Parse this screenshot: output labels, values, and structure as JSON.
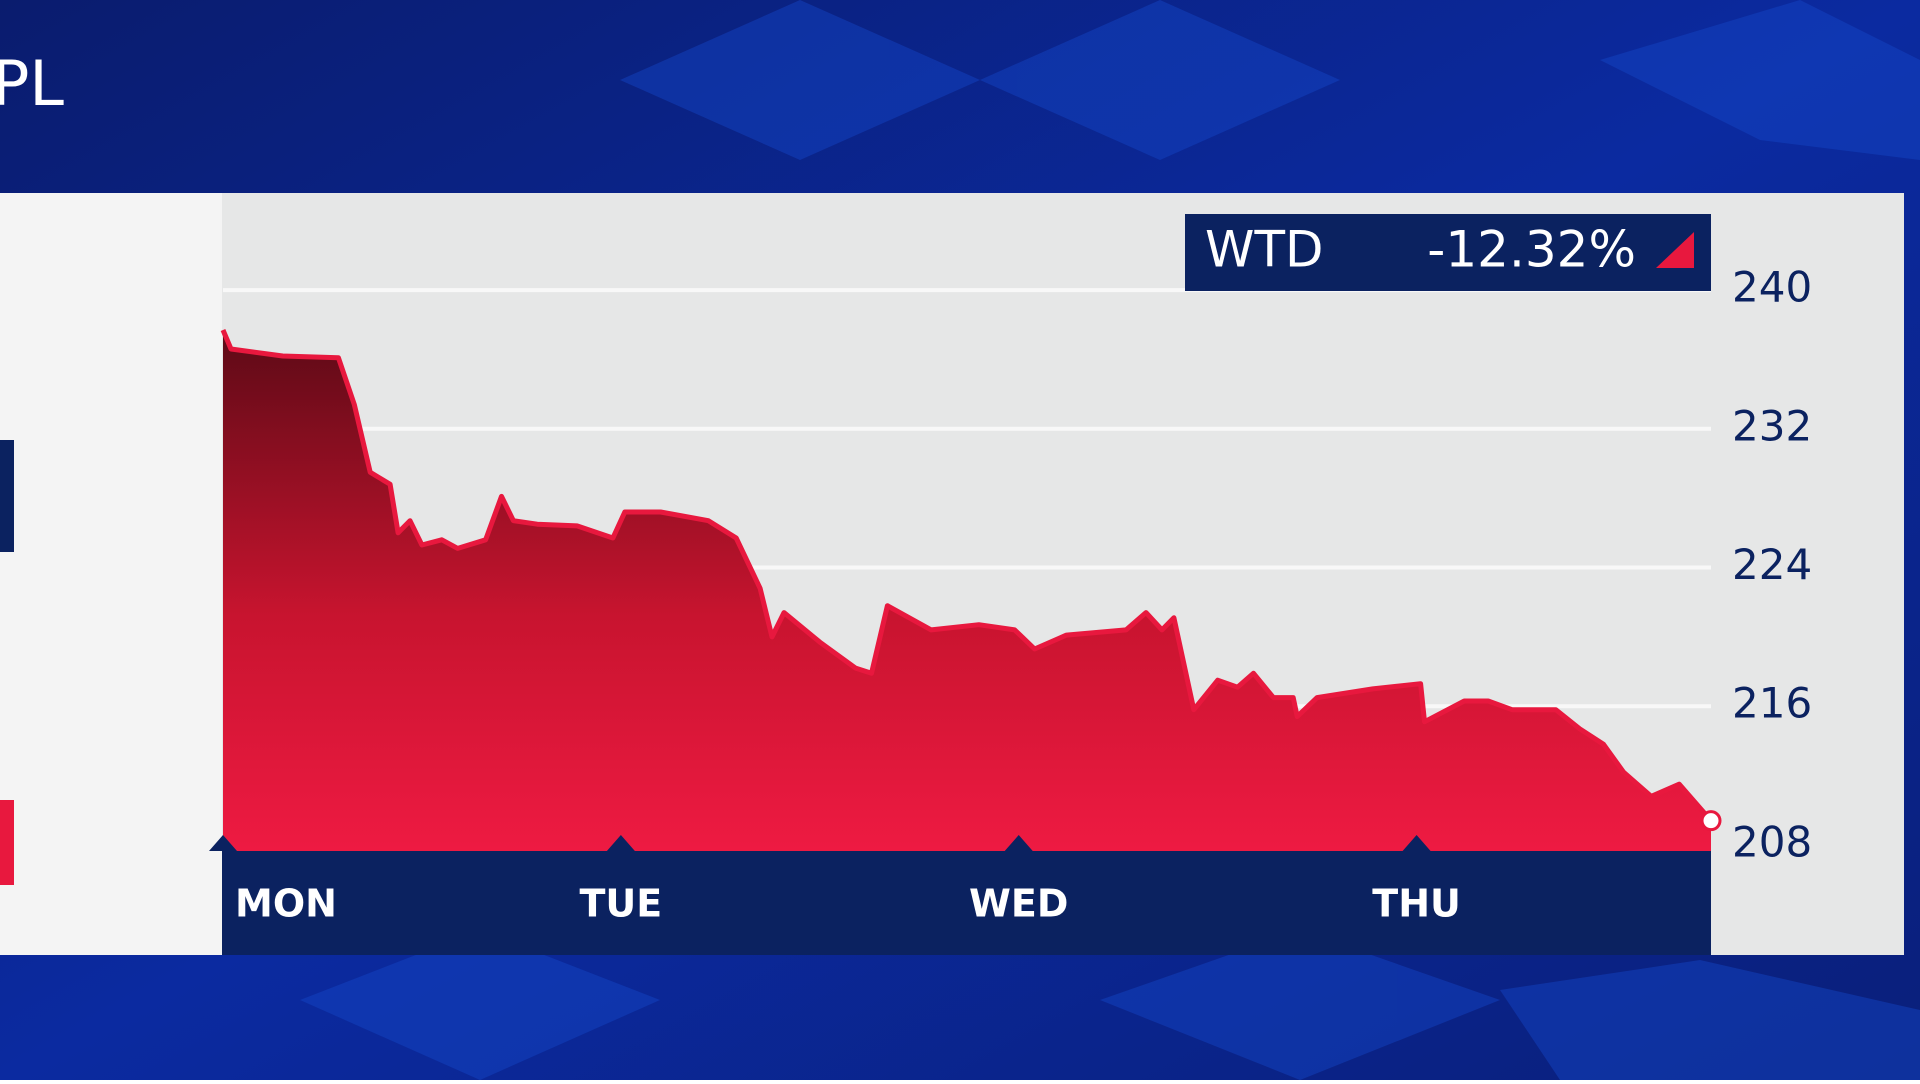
{
  "ticker": "PL",
  "chart_data": {
    "type": "area",
    "badge": {
      "label": "WTD",
      "change": "-12.32%"
    },
    "x": [
      0,
      0.02,
      0.15,
      0.29,
      0.33,
      0.37,
      0.42,
      0.44,
      0.47,
      0.5,
      0.55,
      0.59,
      0.66,
      0.7,
      0.73,
      0.79,
      0.89,
      0.98,
      1.01,
      1.1,
      1.22,
      1.29,
      1.35,
      1.38,
      1.41,
      1.5,
      1.59,
      1.63,
      1.67,
      1.78,
      1.9,
      1.99,
      2.04,
      2.12,
      2.27,
      2.32,
      2.36,
      2.39,
      2.44,
      2.5,
      2.55,
      2.59,
      2.64,
      2.69,
      2.7,
      2.75,
      2.89,
      3.01,
      3.02,
      3.12,
      3.18,
      3.24,
      3.35,
      3.41,
      3.47,
      3.52,
      3.59,
      3.66,
      3.74
    ],
    "values": [
      237.7,
      236.6,
      236.2,
      236.1,
      233.4,
      229.5,
      228.8,
      226.0,
      226.7,
      225.3,
      225.6,
      225.1,
      225.6,
      228.1,
      226.7,
      226.5,
      226.4,
      225.7,
      227.2,
      227.2,
      226.7,
      225.7,
      222.8,
      220.0,
      221.4,
      219.7,
      218.2,
      217.9,
      221.8,
      220.4,
      220.7,
      220.4,
      219.3,
      220.1,
      220.4,
      221.4,
      220.4,
      221.1,
      215.8,
      217.5,
      217.1,
      217.9,
      216.5,
      216.5,
      215.4,
      216.5,
      217.0,
      217.3,
      215.1,
      216.3,
      216.3,
      215.8,
      215.8,
      214.7,
      213.8,
      212.2,
      210.8,
      211.5,
      209.4
    ],
    "color": "#e8183e",
    "xlim": [
      0,
      3.74
    ],
    "xticks": [
      {
        "value": 0,
        "label": "MON"
      },
      {
        "value": 1,
        "label": "TUE"
      },
      {
        "value": 2,
        "label": "WED"
      },
      {
        "value": 3,
        "label": "THU"
      }
    ],
    "ylim": [
      207.65,
      245.6
    ],
    "yticks": [
      208,
      216,
      224,
      232,
      240
    ],
    "grid": true
  }
}
